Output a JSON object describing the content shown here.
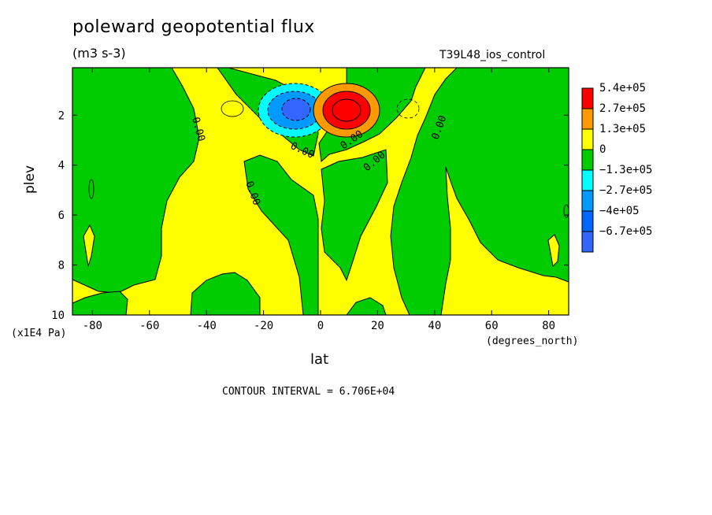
{
  "figure": {
    "title": "poleward geopotential flux",
    "units": "(m3 s-3)",
    "run_label": "T39L48_ios_control",
    "contour_interval": "CONTOUR INTERVAL = 6.706E+04"
  },
  "chart_data": {
    "type": "heatmap",
    "title": "poleward geopotential flux",
    "subtitle": "(m3 s-3)",
    "xlabel": "lat",
    "xunit": "(degrees_north)",
    "ylabel": "plev",
    "yunit": "(x1E4 Pa)",
    "xlim": [
      -87,
      87
    ],
    "ylim": [
      0.1,
      10
    ],
    "y_inverted": true,
    "x_ticks": [
      -80,
      -60,
      -40,
      -20,
      0,
      20,
      40,
      60,
      80
    ],
    "y_ticks": [
      2,
      4,
      6,
      8,
      10
    ],
    "contour_labels": [
      "0.00",
      "0.00",
      "0.00",
      "0.00",
      "0.00",
      "0.00"
    ],
    "colorbar": {
      "labels": [
        "5.4e+05",
        "2.7e+05",
        "1.3e+05",
        "0",
        "−1.3e+05",
        "−2.7e+05",
        "−4e+05",
        "−6.7e+05"
      ],
      "colors": [
        "#ff0000",
        "#ff9900",
        "#ffff00",
        "#00cc00",
        "#00ffff",
        "#0099ff",
        "#0066ff",
        "#3366ff"
      ]
    },
    "features": [
      {
        "kind": "max",
        "lat": 8,
        "plev": 1.8,
        "value": 540000
      },
      {
        "kind": "min",
        "lat": -9,
        "plev": 1.8,
        "value": -600000
      }
    ]
  }
}
